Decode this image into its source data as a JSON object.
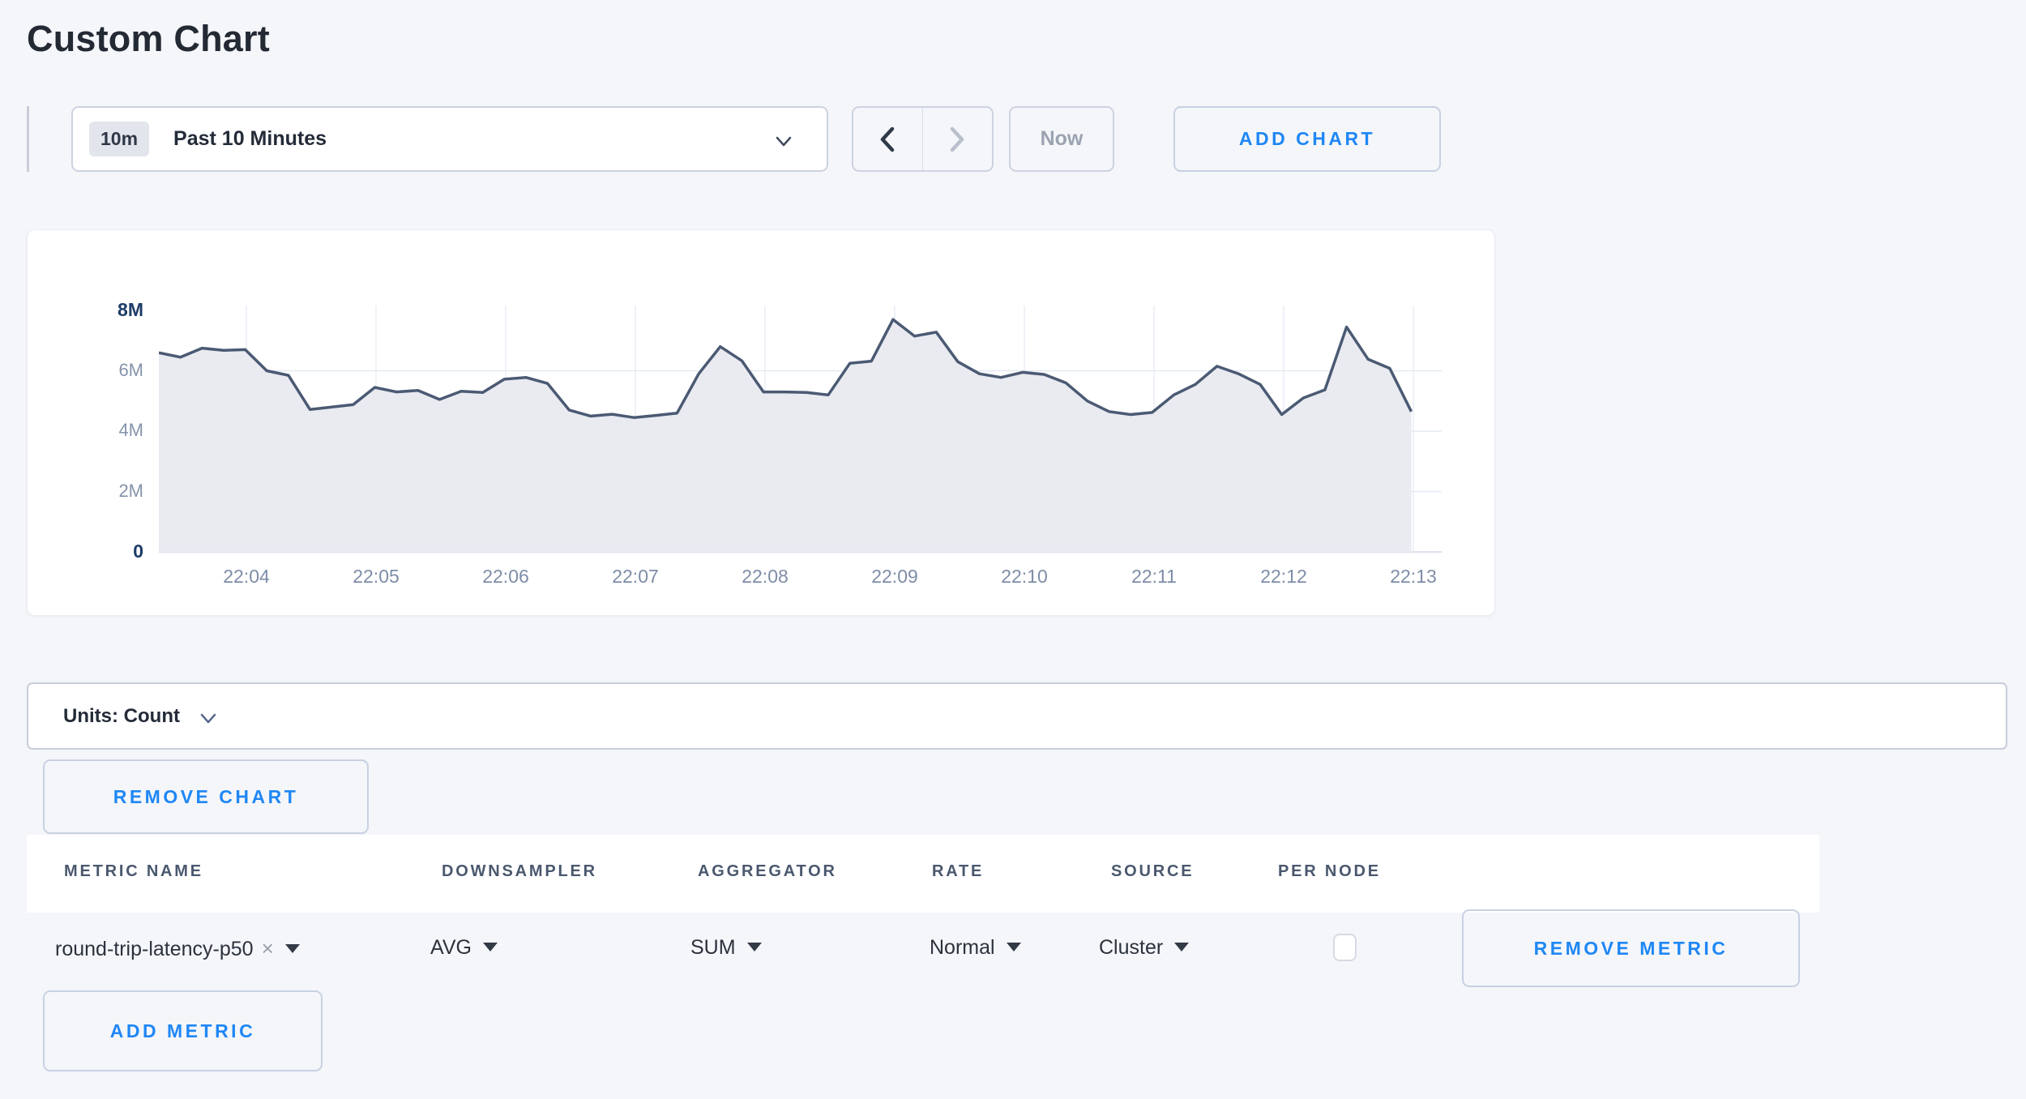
{
  "page": {
    "title": "Custom Chart",
    "background": "#f4f6fa",
    "accent_blue": "#1f87f5"
  },
  "toolbar": {
    "range_badge": "10m",
    "range_label": "Past 10 Minutes",
    "prev_arrow": "chevron-left",
    "next_arrow": "chevron-right",
    "now_label": "Now",
    "add_chart_label": "ADD CHART"
  },
  "units_bar": {
    "label": "Units: Count"
  },
  "buttons": {
    "remove_chart_label": "REMOVE CHART",
    "remove_metric_label": "REMOVE METRIC",
    "add_metric_label": "ADD METRIC"
  },
  "metrics_table": {
    "headers": [
      "METRIC NAME",
      "DOWNSAMPLER",
      "AGGREGATOR",
      "RATE",
      "SOURCE",
      "PER NODE"
    ],
    "row": {
      "metric_name": "round-trip-latency-p50",
      "remove_tag": "×",
      "downsampler": "AVG",
      "aggregator": "SUM",
      "rate": "Normal",
      "source": "Cluster",
      "per_node_checked": false
    }
  },
  "chart_data": {
    "type": "area",
    "title": "",
    "xlabel": "",
    "ylabel": "",
    "x_start": "22:03:20",
    "interval_seconds": 10,
    "x_ticks": [
      "22:04",
      "22:05",
      "22:06",
      "22:07",
      "22:08",
      "22:09",
      "22:10",
      "22:11",
      "22:12",
      "22:13"
    ],
    "x_tick_start_index": 4,
    "x_tick_every": 6,
    "y_ticks": [
      "0",
      "2M",
      "4M",
      "6M",
      "8M"
    ],
    "ylim_millions": [
      0,
      8
    ],
    "grid": true,
    "legend": false,
    "line_color": "#4b5a73",
    "fill_color": "#e9ebf1",
    "values_millions": [
      6.6,
      6.45,
      6.75,
      6.68,
      6.7,
      6.0,
      5.85,
      4.72,
      4.8,
      4.88,
      5.45,
      5.3,
      5.35,
      5.05,
      5.32,
      5.28,
      5.72,
      5.78,
      5.58,
      4.7,
      4.5,
      4.56,
      4.45,
      4.52,
      4.6,
      5.9,
      6.8,
      6.33,
      5.3,
      5.3,
      5.28,
      5.2,
      6.25,
      6.32,
      7.7,
      7.15,
      7.28,
      6.3,
      5.9,
      5.78,
      5.95,
      5.88,
      5.6,
      5.0,
      4.65,
      4.55,
      4.62,
      5.2,
      5.55,
      6.15,
      5.9,
      5.55,
      4.55,
      5.1,
      5.37,
      7.45,
      6.38,
      6.08,
      4.65
    ]
  }
}
